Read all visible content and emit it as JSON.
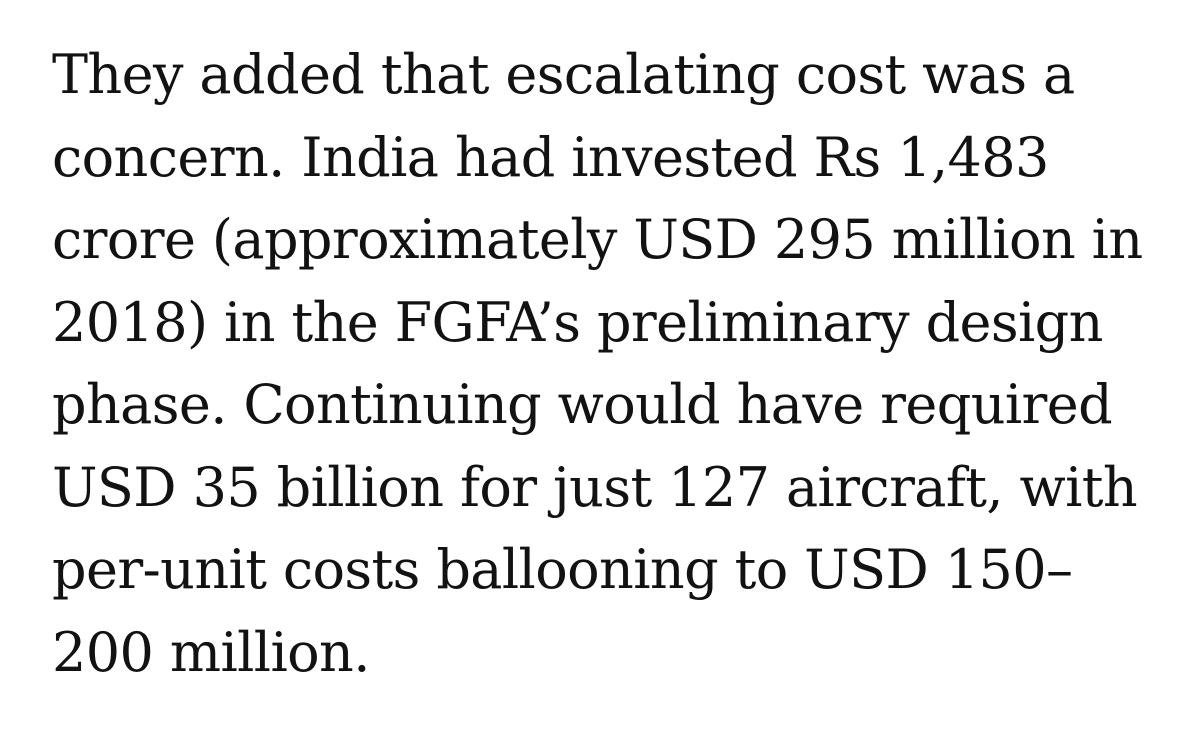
{
  "article": {
    "lines": [
      "They added that escalating cost was a",
      "concern. India had invested Rs 1,483",
      "crore (approximately USD 295 million in",
      "2018) in the FGFA’s preliminary design",
      "phase. Continuing would have required",
      "USD 35 billion for just 127 aircraft, with",
      "per-unit costs ballooning to USD 150–",
      "200 million."
    ]
  }
}
